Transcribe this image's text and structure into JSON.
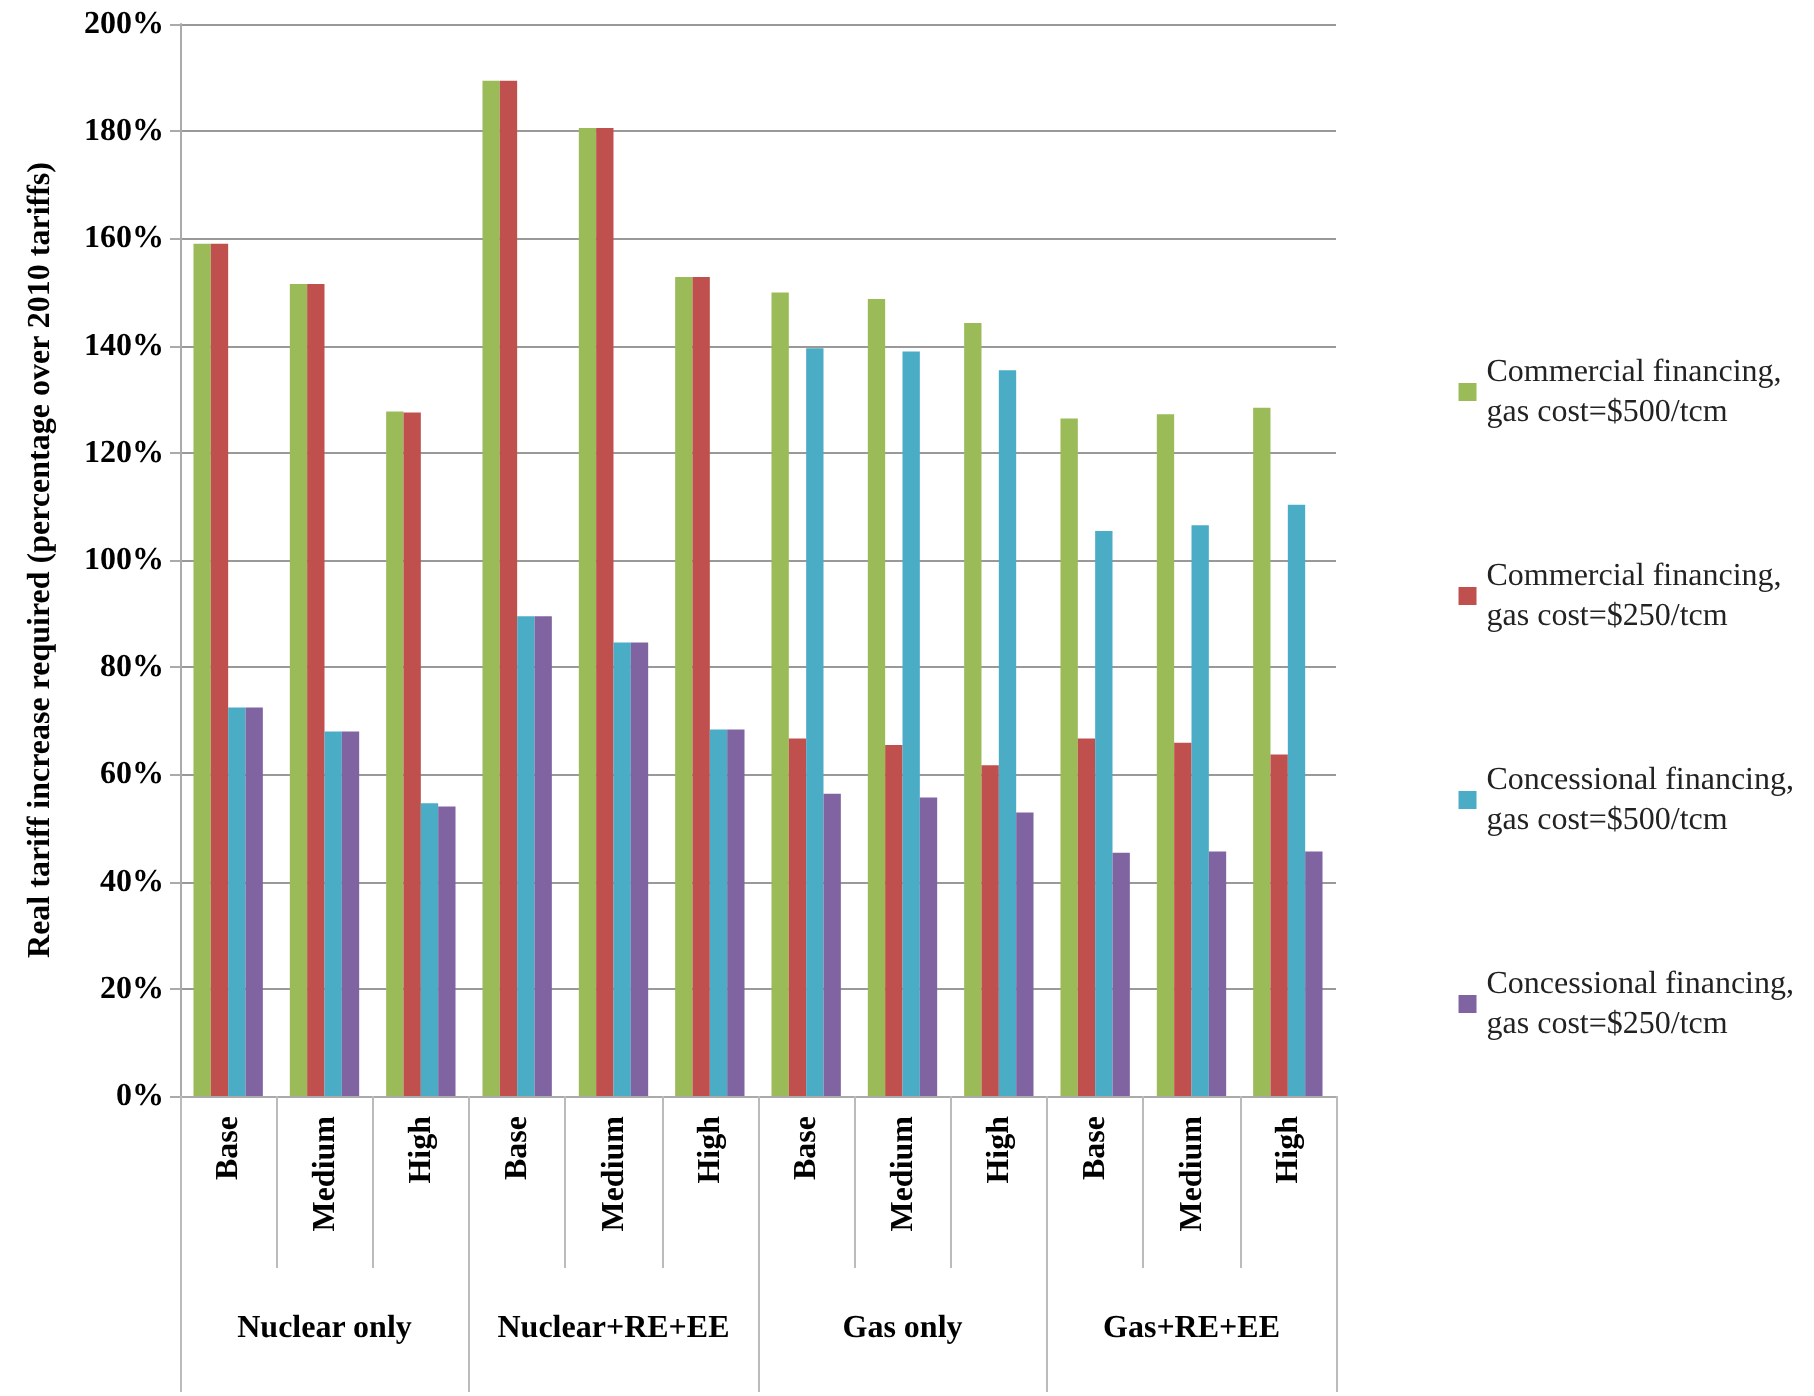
{
  "chart_data": {
    "type": "bar",
    "ylabel": "Real tariff increase required (percentage over 2010 tariffs)",
    "categories": [
      "Base",
      "Medium",
      "High",
      "Base",
      "Medium",
      "High",
      "Base",
      "Medium",
      "High",
      "Base",
      "Medium",
      "High"
    ],
    "annotations": [
      "Nuclear only",
      "Nuclear+RE+EE",
      "Gas only",
      "Gas+RE+EE"
    ],
    "series": [
      {
        "name": "Commercial financing, gas cost=$500/tcm",
        "color": "#9bbb59",
        "values": [
          159,
          151.5,
          127.7,
          189.4,
          180.6,
          152.8,
          149.9,
          148.7,
          144.2,
          126.4,
          127.2,
          128.4
        ]
      },
      {
        "name": "Commercial financing, gas cost=$250/tcm",
        "color": "#c0504d",
        "values": [
          159,
          151.5,
          127.5,
          189.4,
          180.6,
          152.8,
          66.7,
          65.5,
          61.7,
          66.7,
          65.9,
          63.7
        ]
      },
      {
        "name": "Concessional financing, gas cost=$500/tcm",
        "color": "#4bacc6",
        "values": [
          72.5,
          68,
          54.6,
          89.5,
          84.6,
          68.4,
          139.5,
          138.9,
          135.4,
          105.4,
          106.5,
          110.3
        ]
      },
      {
        "name": "Concessional financing, gas cost=$250/tcm",
        "color": "#8064a2",
        "values": [
          72.5,
          68,
          54,
          89.5,
          84.6,
          68.4,
          56.4,
          55.7,
          52.9,
          45.4,
          45.6,
          45.6
        ]
      }
    ],
    "ylim": [
      0,
      200
    ],
    "yticks": [
      {
        "value": 0,
        "label": "0%"
      },
      {
        "value": 20,
        "label": "20%"
      },
      {
        "value": 40,
        "label": "40%"
      },
      {
        "value": 60,
        "label": "60%"
      },
      {
        "value": 80,
        "label": "80%"
      },
      {
        "value": 100,
        "label": "100%"
      },
      {
        "value": 120,
        "label": "120%"
      },
      {
        "value": 140,
        "label": "140%"
      },
      {
        "value": 160,
        "label": "160%"
      },
      {
        "value": 180,
        "label": "180%"
      },
      {
        "value": 200,
        "label": "200%"
      }
    ],
    "grid": "y",
    "legend": "right"
  }
}
